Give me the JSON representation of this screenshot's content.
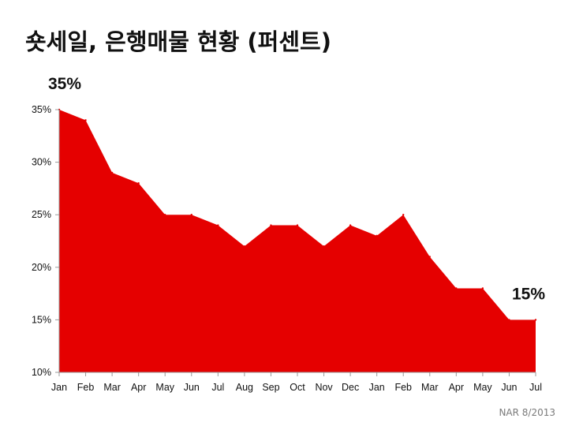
{
  "title": "숏세일, 은행매물 현황 (퍼센트)",
  "source": "NAR 8/2013",
  "colors": {
    "area": "#e50000",
    "axis": "#999999"
  },
  "chart_data": {
    "type": "area",
    "categories": [
      "Jan",
      "Feb",
      "Mar",
      "Apr",
      "May",
      "Jun",
      "Jul",
      "Aug",
      "Sep",
      "Oct",
      "Nov",
      "Dec",
      "Jan",
      "Feb",
      "Mar",
      "Apr",
      "May",
      "Jun",
      "Jul"
    ],
    "values": [
      35,
      34,
      29,
      28,
      25,
      25,
      24,
      22,
      24,
      24,
      22,
      24,
      23,
      25,
      21,
      18,
      18,
      15,
      15
    ],
    "ylim": [
      10,
      35
    ],
    "yticks": [
      10,
      15,
      20,
      25,
      30,
      35
    ],
    "ytick_labels": [
      "10%",
      "15%",
      "20%",
      "25%",
      "30%",
      "35%"
    ],
    "grid": false,
    "annotations": [
      {
        "text": "35%",
        "index": 0
      },
      {
        "text": "15%",
        "index": 18
      }
    ]
  }
}
